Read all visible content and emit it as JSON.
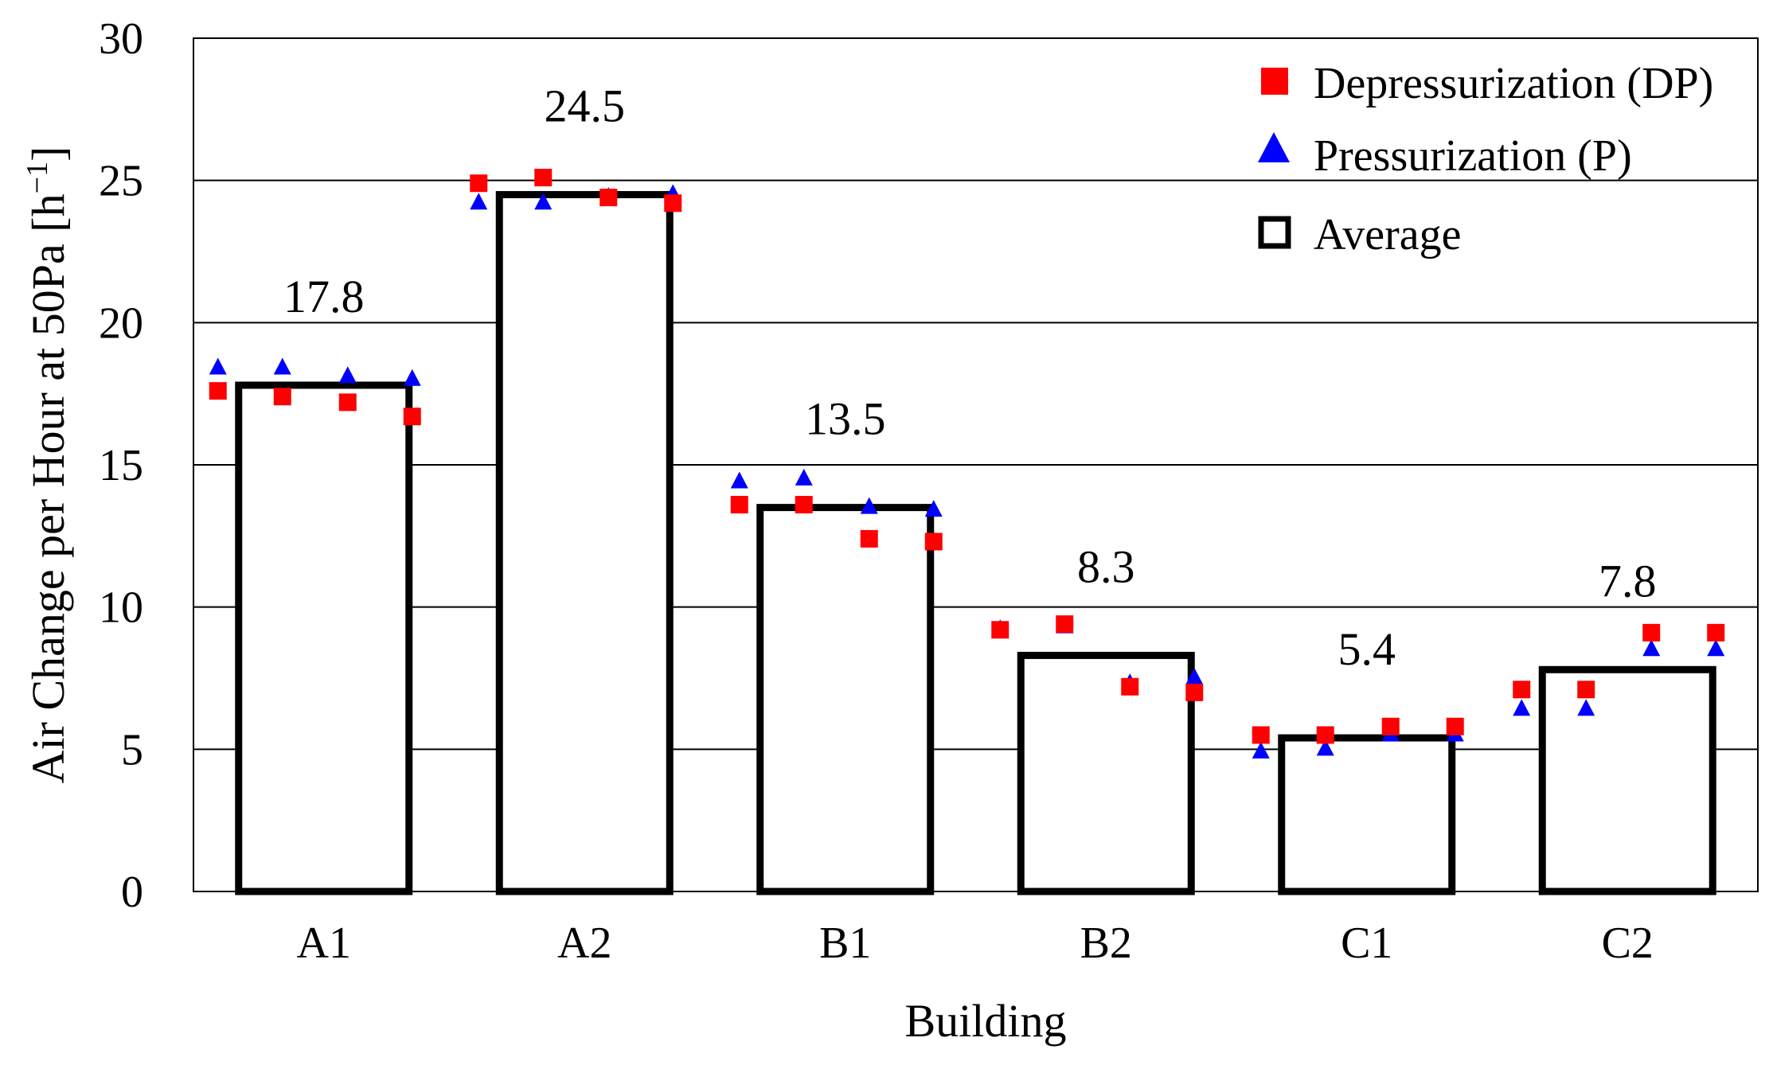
{
  "chart_data": {
    "type": "bar",
    "xlabel": "Building",
    "ylabel": "Air Change per Hour at 50Pa [h",
    "ylabel_sup": "−1",
    "ylabel_end": "]",
    "ylim": [
      0,
      30
    ],
    "yticks": [
      "0",
      "5",
      "10",
      "15",
      "20",
      "25",
      "30"
    ],
    "grid": true,
    "legend_position": "top-right",
    "categories": [
      "A1",
      "A2",
      "B1",
      "B2",
      "C1",
      "C2"
    ],
    "average": {
      "name": "Average",
      "values": [
        17.8,
        24.5,
        13.5,
        8.3,
        5.4,
        7.8
      ],
      "labels": [
        "17.8",
        "24.5",
        "13.5",
        "8.3",
        "5.4",
        "7.8"
      ]
    },
    "series": [
      {
        "name": "Depressurization (DP)",
        "marker": "square",
        "color": "#ff0000",
        "points": [
          [
            17.6,
            17.4,
            17.2,
            16.7
          ],
          [
            24.9,
            25.1,
            24.4,
            24.2
          ],
          [
            13.6,
            13.6,
            12.4,
            12.3
          ],
          [
            9.2,
            9.4,
            7.2,
            7.0
          ],
          [
            5.5,
            5.5,
            5.8,
            5.8
          ],
          [
            7.1,
            7.1,
            9.1,
            9.1
          ]
        ]
      },
      {
        "name": "Pressurization (P)",
        "marker": "triangle",
        "color": "#0000ff",
        "points": [
          [
            18.4,
            18.4,
            18.1,
            18.0
          ],
          [
            24.2,
            24.2,
            24.4,
            24.5
          ],
          [
            14.4,
            14.5,
            13.5,
            13.4
          ],
          [
            9.2,
            9.3,
            7.3,
            7.5
          ],
          [
            4.9,
            5.0,
            5.5,
            5.5
          ],
          [
            6.4,
            6.4,
            8.5,
            8.5
          ]
        ]
      }
    ]
  }
}
